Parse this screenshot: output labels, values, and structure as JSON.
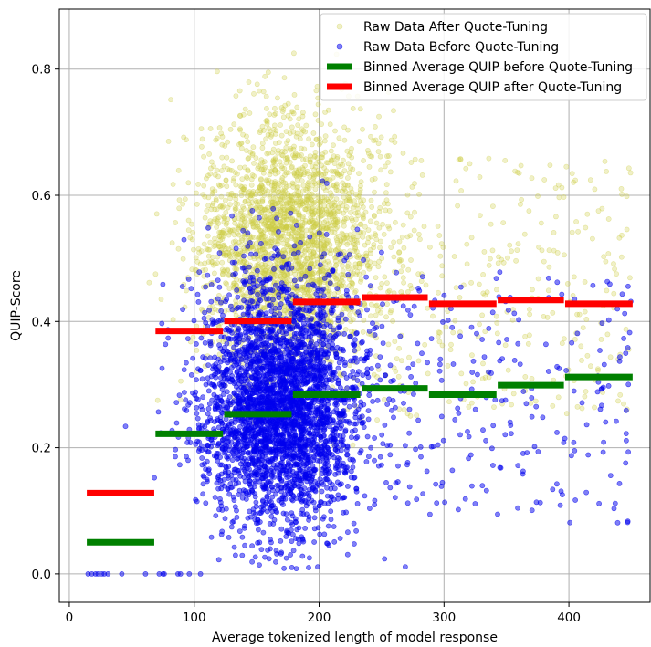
{
  "chart_data": {
    "type": "scatter",
    "title": "",
    "xlabel": "Average tokenized length of model response",
    "ylabel": "QUIP-Score",
    "xlim": [
      -8,
      465
    ],
    "ylim": [
      -0.045,
      0.895
    ],
    "xticks": [
      0,
      100,
      200,
      300,
      400
    ],
    "yticks": [
      0.0,
      0.2,
      0.4,
      0.6,
      0.8
    ],
    "xtick_labels": [
      "0",
      "100",
      "200",
      "300",
      "400"
    ],
    "ytick_labels": [
      "0.0",
      "0.2",
      "0.4",
      "0.6",
      "0.8"
    ],
    "grid": true,
    "legend_position": "top-right",
    "series": [
      {
        "name": "Raw Data After Quote-Tuning",
        "kind": "scatter",
        "color": "#cccc44",
        "alpha": 0.3,
        "cloud": {
          "n": 2600,
          "cx": 178,
          "sx": 38,
          "cy": 0.52,
          "sy": 0.1,
          "seed": 7
        },
        "tail": {
          "n": 260,
          "x0": 260,
          "x1": 450,
          "y0": 0.25,
          "y1": 0.66,
          "seed": 11
        }
      },
      {
        "name": "Raw Data Before Quote-Tuning",
        "kind": "scatter",
        "color": "#0000ee",
        "alpha": 0.5,
        "cloud": {
          "n": 3400,
          "cx": 170,
          "sx": 32,
          "cy": 0.27,
          "sy": 0.1,
          "seed": 3
        },
        "tail": {
          "n": 240,
          "x0": 240,
          "x1": 450,
          "y0": 0.08,
          "y1": 0.48,
          "seed": 5
        },
        "zeros": [
          15,
          18,
          21,
          23,
          26,
          28,
          31,
          42,
          61,
          72,
          75,
          76,
          87,
          89,
          96,
          105
        ]
      },
      {
        "name": "Binned Average QUIP before Quote-Tuning",
        "kind": "bins",
        "color": "#008000",
        "bins": [
          {
            "x0": 14,
            "x1": 68,
            "y": 0.05
          },
          {
            "x0": 69,
            "x1": 123,
            "y": 0.222
          },
          {
            "x0": 124,
            "x1": 178,
            "y": 0.253
          },
          {
            "x0": 179,
            "x1": 233,
            "y": 0.284
          },
          {
            "x0": 234,
            "x1": 287,
            "y": 0.294
          },
          {
            "x0": 288,
            "x1": 342,
            "y": 0.284
          },
          {
            "x0": 343,
            "x1": 396,
            "y": 0.299
          },
          {
            "x0": 397,
            "x1": 451,
            "y": 0.312
          }
        ]
      },
      {
        "name": "Binned Average QUIP after Quote-Tuning",
        "kind": "bins",
        "color": "#ff0000",
        "bins": [
          {
            "x0": 14,
            "x1": 68,
            "y": 0.128
          },
          {
            "x0": 69,
            "x1": 123,
            "y": 0.385
          },
          {
            "x0": 124,
            "x1": 178,
            "y": 0.401
          },
          {
            "x0": 179,
            "x1": 233,
            "y": 0.431
          },
          {
            "x0": 234,
            "x1": 287,
            "y": 0.438
          },
          {
            "x0": 288,
            "x1": 342,
            "y": 0.428
          },
          {
            "x0": 343,
            "x1": 396,
            "y": 0.434
          },
          {
            "x0": 397,
            "x1": 451,
            "y": 0.428
          }
        ]
      }
    ]
  }
}
